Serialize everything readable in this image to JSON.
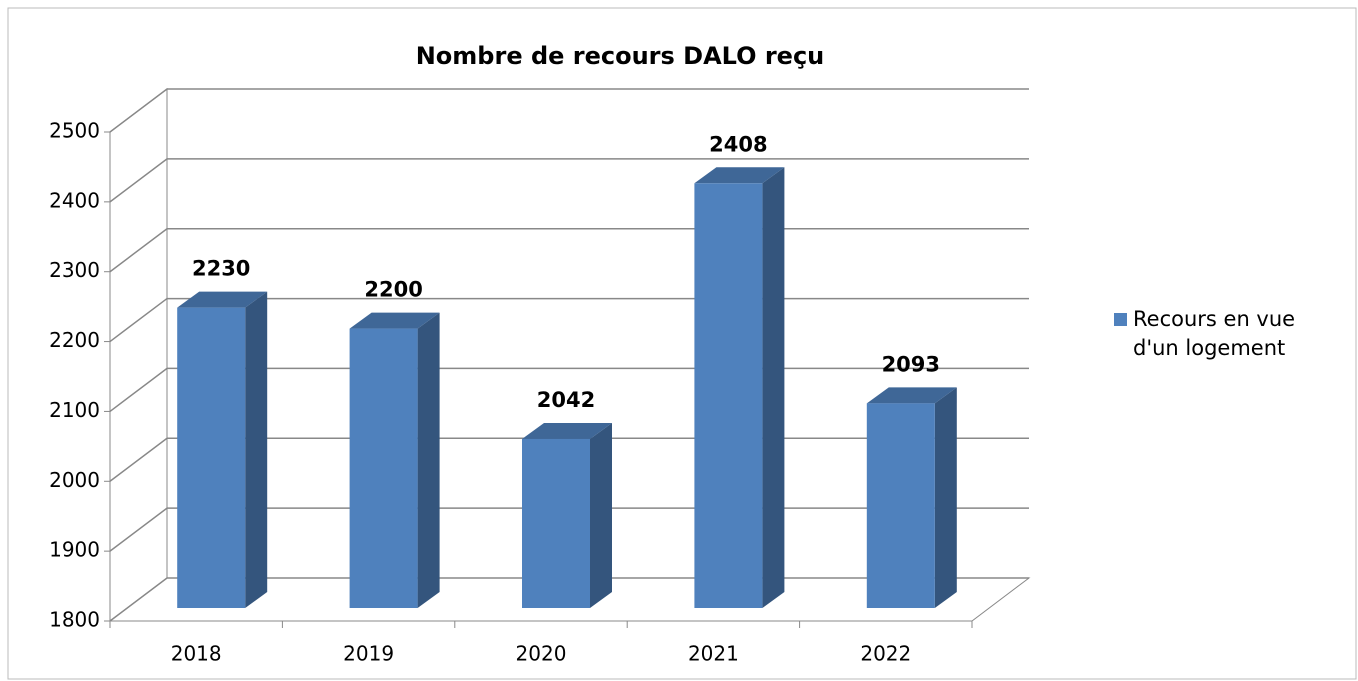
{
  "chart_data": {
    "type": "bar",
    "title": "Nombre de recours DALO reçu",
    "categories": [
      "2018",
      "2019",
      "2020",
      "2021",
      "2022"
    ],
    "series": [
      {
        "name": "Recours en vue d'un logement",
        "color": "#4f81bd",
        "values": [
          2230,
          2200,
          2042,
          2408,
          2093
        ]
      }
    ],
    "ylim": [
      1800,
      2500
    ],
    "yticks": [
      1800,
      1900,
      2000,
      2100,
      2200,
      2300,
      2400,
      2500
    ],
    "grid": true,
    "legend": "right"
  }
}
